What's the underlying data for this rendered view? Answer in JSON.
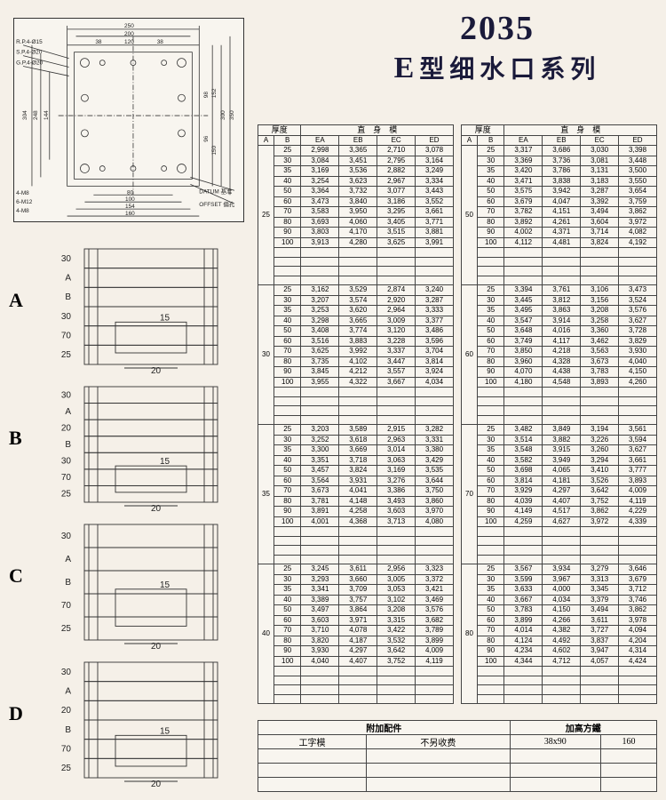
{
  "title": {
    "number": "2035",
    "prefix": "E",
    "text": "型细水口系列"
  },
  "top_diagram": {
    "dims_top": [
      "250",
      "200",
      "120",
      "38",
      "38"
    ],
    "dims_left": [
      "304",
      "248",
      "144",
      "R.P.4-Ø15",
      "S.P.4-Ø20",
      "G.P.4-Ø20"
    ],
    "dims_right": [
      "350",
      "300",
      "152",
      "98",
      "96",
      "150"
    ],
    "dims_bottom": [
      "80",
      "100",
      "154",
      "160"
    ],
    "labels": [
      "4-M8",
      "6-M12",
      "4-M8",
      "DATUM 基准",
      "OFFSET 偏孔"
    ],
    "stroke": "#333333",
    "bg": "#f8f5ef"
  },
  "side": {
    "items": [
      {
        "label": "A",
        "rows": [
          "30",
          "A",
          "B",
          "30",
          "70",
          "25"
        ],
        "inner": [
          "15",
          "20"
        ]
      },
      {
        "label": "B",
        "rows": [
          "30",
          "A",
          "20",
          "B",
          "30",
          "70",
          "25"
        ],
        "inner": [
          "15",
          "20"
        ]
      },
      {
        "label": "C",
        "rows": [
          "30",
          "A",
          "B",
          "70",
          "25"
        ],
        "inner": [
          "15",
          "20"
        ]
      },
      {
        "label": "D",
        "rows": [
          "30",
          "A",
          "20",
          "B",
          "70",
          "25"
        ],
        "inner": [
          "15",
          "20"
        ]
      }
    ],
    "stroke": "#333333"
  },
  "tables": {
    "header_top": "厚度",
    "header_main": "直　身　模",
    "cols": [
      "A",
      "B",
      "EA",
      "EB",
      "EC",
      "ED"
    ],
    "left": [
      {
        "A": "25",
        "rows": [
          [
            "25",
            "2,998",
            "3,365",
            "2,710",
            "3,078"
          ],
          [
            "30",
            "3,084",
            "3,451",
            "2,795",
            "3,164"
          ],
          [
            "35",
            "3,169",
            "3,536",
            "2,882",
            "3,249"
          ],
          [
            "40",
            "3,254",
            "3,623",
            "2,967",
            "3,334"
          ],
          [
            "50",
            "3,364",
            "3,732",
            "3,077",
            "3,443"
          ],
          [
            "60",
            "3,473",
            "3,840",
            "3,186",
            "3,552"
          ],
          [
            "70",
            "3,583",
            "3,950",
            "3,295",
            "3,661"
          ],
          [
            "80",
            "3,693",
            "4,060",
            "3,405",
            "3,771"
          ],
          [
            "90",
            "3,803",
            "4,170",
            "3,515",
            "3,881"
          ],
          [
            "100",
            "3,913",
            "4,280",
            "3,625",
            "3,991"
          ]
        ]
      },
      {
        "A": "30",
        "rows": [
          [
            "25",
            "3,162",
            "3,529",
            "2,874",
            "3,240"
          ],
          [
            "30",
            "3,207",
            "3,574",
            "2,920",
            "3,287"
          ],
          [
            "35",
            "3,253",
            "3,620",
            "2,964",
            "3,333"
          ],
          [
            "40",
            "3,298",
            "3,665",
            "3,009",
            "3,377"
          ],
          [
            "50",
            "3,408",
            "3,774",
            "3,120",
            "3,486"
          ],
          [
            "60",
            "3,516",
            "3,883",
            "3,228",
            "3,596"
          ],
          [
            "70",
            "3,625",
            "3,992",
            "3,337",
            "3,704"
          ],
          [
            "80",
            "3,735",
            "4,102",
            "3,447",
            "3,814"
          ],
          [
            "90",
            "3,845",
            "4,212",
            "3,557",
            "3,924"
          ],
          [
            "100",
            "3,955",
            "4,322",
            "3,667",
            "4,034"
          ]
        ]
      },
      {
        "A": "35",
        "rows": [
          [
            "25",
            "3,203",
            "3,589",
            "2,915",
            "3,282"
          ],
          [
            "30",
            "3,252",
            "3,618",
            "2,963",
            "3,331"
          ],
          [
            "35",
            "3,300",
            "3,669",
            "3,014",
            "3,380"
          ],
          [
            "40",
            "3,351",
            "3,718",
            "3,063",
            "3,429"
          ],
          [
            "50",
            "3,457",
            "3,824",
            "3,169",
            "3,535"
          ],
          [
            "60",
            "3,564",
            "3,931",
            "3,276",
            "3,644"
          ],
          [
            "70",
            "3,673",
            "4,041",
            "3,386",
            "3,750"
          ],
          [
            "80",
            "3,781",
            "4,148",
            "3,493",
            "3,860"
          ],
          [
            "90",
            "3,891",
            "4,258",
            "3,603",
            "3,970"
          ],
          [
            "100",
            "4,001",
            "4,368",
            "3,713",
            "4,080"
          ]
        ]
      },
      {
        "A": "40",
        "rows": [
          [
            "25",
            "3,245",
            "3,611",
            "2,956",
            "3,323"
          ],
          [
            "30",
            "3,293",
            "3,660",
            "3,005",
            "3,372"
          ],
          [
            "35",
            "3,341",
            "3,709",
            "3,053",
            "3,421"
          ],
          [
            "40",
            "3,389",
            "3,757",
            "3,102",
            "3,469"
          ],
          [
            "50",
            "3,497",
            "3,864",
            "3,208",
            "3,576"
          ],
          [
            "60",
            "3,603",
            "3,971",
            "3,315",
            "3,682"
          ],
          [
            "70",
            "3,710",
            "4,078",
            "3,422",
            "3,789"
          ],
          [
            "80",
            "3,820",
            "4,187",
            "3,532",
            "3,899"
          ],
          [
            "90",
            "3,930",
            "4,297",
            "3,642",
            "4,009"
          ],
          [
            "100",
            "4,040",
            "4,407",
            "3,752",
            "4,119"
          ]
        ]
      }
    ],
    "right": [
      {
        "A": "50",
        "rows": [
          [
            "25",
            "3,317",
            "3,686",
            "3,030",
            "3,398"
          ],
          [
            "30",
            "3,369",
            "3,736",
            "3,081",
            "3,448"
          ],
          [
            "35",
            "3,420",
            "3,786",
            "3,131",
            "3,500"
          ],
          [
            "40",
            "3,471",
            "3,838",
            "3,183",
            "3,550"
          ],
          [
            "50",
            "3,575",
            "3,942",
            "3,287",
            "3,654"
          ],
          [
            "60",
            "3,679",
            "4,047",
            "3,392",
            "3,759"
          ],
          [
            "70",
            "3,782",
            "4,151",
            "3,494",
            "3,862"
          ],
          [
            "80",
            "3,892",
            "4,261",
            "3,604",
            "3,972"
          ],
          [
            "90",
            "4,002",
            "4,371",
            "3,714",
            "4,082"
          ],
          [
            "100",
            "4,112",
            "4,481",
            "3,824",
            "4,192"
          ]
        ]
      },
      {
        "A": "60",
        "rows": [
          [
            "25",
            "3,394",
            "3,761",
            "3,106",
            "3,473"
          ],
          [
            "30",
            "3,445",
            "3,812",
            "3,156",
            "3,524"
          ],
          [
            "35",
            "3,495",
            "3,863",
            "3,208",
            "3,576"
          ],
          [
            "40",
            "3,547",
            "3,914",
            "3,258",
            "3,627"
          ],
          [
            "50",
            "3,648",
            "4,016",
            "3,360",
            "3,728"
          ],
          [
            "60",
            "3,749",
            "4,117",
            "3,462",
            "3,829"
          ],
          [
            "70",
            "3,850",
            "4,218",
            "3,563",
            "3,930"
          ],
          [
            "80",
            "3,960",
            "4,328",
            "3,673",
            "4,040"
          ],
          [
            "90",
            "4,070",
            "4,438",
            "3,783",
            "4,150"
          ],
          [
            "100",
            "4,180",
            "4,548",
            "3,893",
            "4,260"
          ]
        ]
      },
      {
        "A": "70",
        "rows": [
          [
            "25",
            "3,482",
            "3,849",
            "3,194",
            "3,561"
          ],
          [
            "30",
            "3,514",
            "3,882",
            "3,226",
            "3,594"
          ],
          [
            "35",
            "3,548",
            "3,915",
            "3,260",
            "3,627"
          ],
          [
            "40",
            "3,582",
            "3,949",
            "3,294",
            "3,661"
          ],
          [
            "50",
            "3,698",
            "4,065",
            "3,410",
            "3,777"
          ],
          [
            "60",
            "3,814",
            "4,181",
            "3,526",
            "3,893"
          ],
          [
            "70",
            "3,929",
            "4,297",
            "3,642",
            "4,009"
          ],
          [
            "80",
            "4,039",
            "4,407",
            "3,752",
            "4,119"
          ],
          [
            "90",
            "4,149",
            "4,517",
            "3,862",
            "4,229"
          ],
          [
            "100",
            "4,259",
            "4,627",
            "3,972",
            "4,339"
          ]
        ]
      },
      {
        "A": "80",
        "rows": [
          [
            "25",
            "3,567",
            "3,934",
            "3,279",
            "3,646"
          ],
          [
            "30",
            "3,599",
            "3,967",
            "3,313",
            "3,679"
          ],
          [
            "35",
            "3,633",
            "4,000",
            "3,345",
            "3,712"
          ],
          [
            "40",
            "3,667",
            "4,034",
            "3,379",
            "3,746"
          ],
          [
            "50",
            "3,783",
            "4,150",
            "3,494",
            "3,862"
          ],
          [
            "60",
            "3,899",
            "4,266",
            "3,611",
            "3,978"
          ],
          [
            "70",
            "4,014",
            "4,382",
            "3,727",
            "4,094"
          ],
          [
            "80",
            "4,124",
            "4,492",
            "3,837",
            "4,204"
          ],
          [
            "90",
            "4,234",
            "4,602",
            "3,947",
            "4,314"
          ],
          [
            "100",
            "4,344",
            "4,712",
            "4,057",
            "4,424"
          ]
        ]
      }
    ],
    "blank_rows_per_section": 4,
    "border_color": "#444444",
    "bg": "#f8f5ef"
  },
  "accessory": {
    "header_left": "附加配件",
    "header_right": "加高方鐵",
    "row1": [
      "工字模",
      "不另收费",
      "38x90",
      "160"
    ],
    "blank_rows": 3
  }
}
